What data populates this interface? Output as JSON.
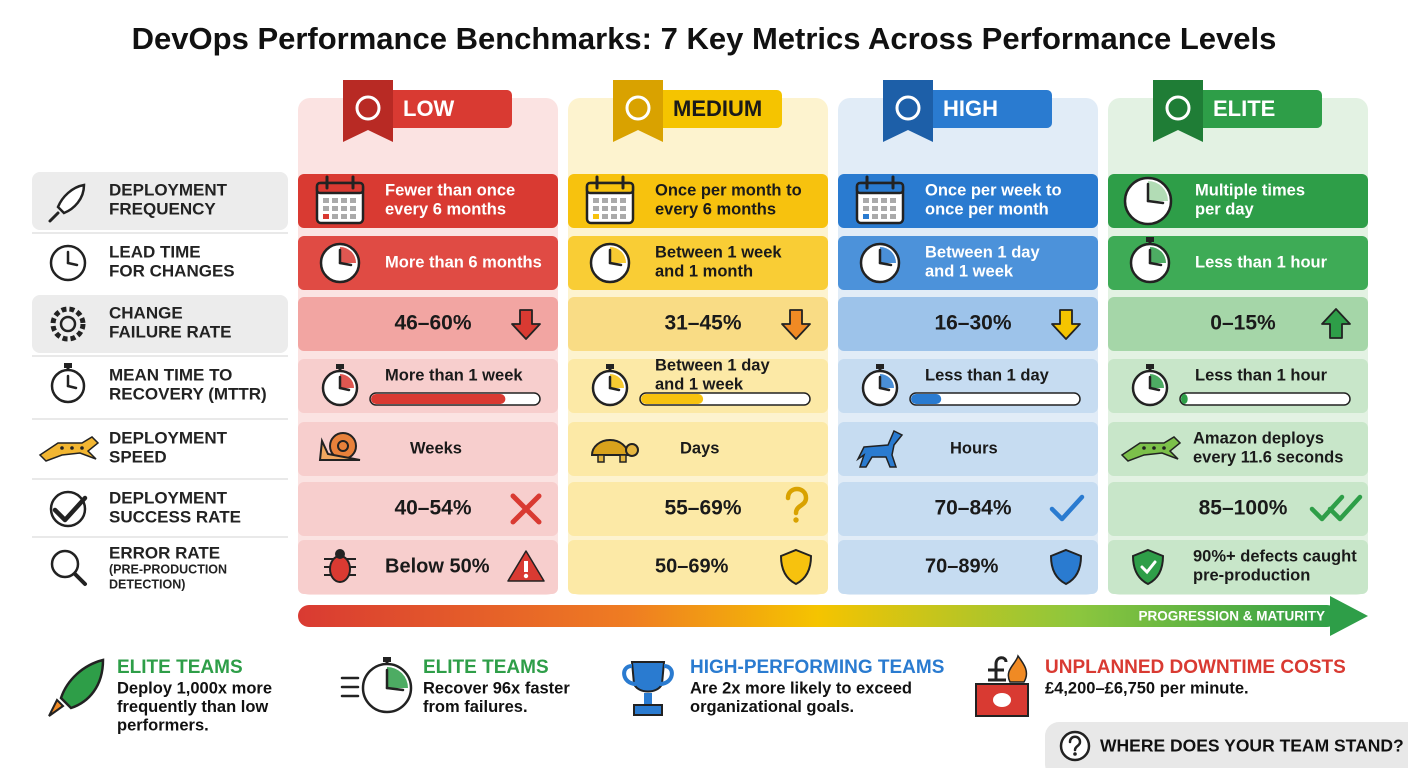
{
  "title": "DevOps Performance Benchmarks: 7 Key Metrics Across Performance Levels",
  "levels": [
    {
      "name": "LOW",
      "color": "#d93a32"
    },
    {
      "name": "MEDIUM",
      "color": "#f5c400"
    },
    {
      "name": "HIGH",
      "color": "#2a7bd0"
    },
    {
      "name": "ELITE",
      "color": "#2e9e48"
    }
  ],
  "metrics": [
    {
      "label": [
        "DEPLOYMENT",
        "FREQUENCY"
      ],
      "cells": [
        [
          "Fewer than once",
          "every 6 months"
        ],
        [
          "Once per month to",
          "every 6 months"
        ],
        [
          "Once per week to",
          "once per month"
        ],
        [
          "Multiple times",
          "per day"
        ]
      ]
    },
    {
      "label": [
        "LEAD TIME",
        "FOR CHANGES"
      ],
      "cells": [
        [
          "More than 6 months"
        ],
        [
          "Between 1 week",
          "and 1 month"
        ],
        [
          "Between 1 day",
          "and 1 week"
        ],
        [
          "Less than 1 hour"
        ]
      ]
    },
    {
      "label": [
        "CHANGE",
        "FAILURE RATE"
      ],
      "cells": [
        [
          "46–60%"
        ],
        [
          "31–45%"
        ],
        [
          "16–30%"
        ],
        [
          "0–15%"
        ]
      ]
    },
    {
      "label": [
        "MEAN TIME TO",
        "RECOVERY (MTTR)"
      ],
      "cells": [
        [
          "More than 1 week"
        ],
        [
          "Between 1 day",
          "and 1 week"
        ],
        [
          "Less than 1 day"
        ],
        [
          "Less than 1 hour"
        ]
      ],
      "bars": [
        80,
        37,
        18,
        4
      ]
    },
    {
      "label": [
        "DEPLOYMENT",
        "SPEED"
      ],
      "cells": [
        [
          "Weeks"
        ],
        [
          "Days"
        ],
        [
          "Hours"
        ],
        [
          "Amazon deploys",
          "every 11.6 seconds"
        ]
      ]
    },
    {
      "label": [
        "DEPLOYMENT",
        "SUCCESS RATE"
      ],
      "cells": [
        [
          "40–54%"
        ],
        [
          "55–69%"
        ],
        [
          "70–84%"
        ],
        [
          "85–100%"
        ]
      ]
    },
    {
      "label": [
        "ERROR RATE",
        "(PRE-PRODUCTION",
        "DETECTION)"
      ],
      "cells": [
        [
          "Below 50%"
        ],
        [
          "50–69%"
        ],
        [
          "70–89%"
        ],
        [
          "90%+ defects caught",
          "pre-production"
        ]
      ]
    }
  ],
  "progression_label": "PROGRESSION & MATURITY",
  "highlights": [
    {
      "heading": "ELITE TEAMS",
      "lines": [
        "Deploy 1,000x more",
        "frequently than low",
        "performers."
      ]
    },
    {
      "heading": "ELITE TEAMS",
      "lines": [
        "Recover 96x faster",
        "from failures."
      ]
    },
    {
      "heading": "HIGH-PERFORMING TEAMS",
      "lines": [
        "Are 2x more likely to exceed",
        "organizational goals."
      ]
    },
    {
      "heading": "UNPLANNED DOWNTIME COSTS",
      "lines": [
        "£4,200–£6,750 per minute."
      ]
    }
  ],
  "cta": "WHERE DOES YOUR TEAM STAND?"
}
